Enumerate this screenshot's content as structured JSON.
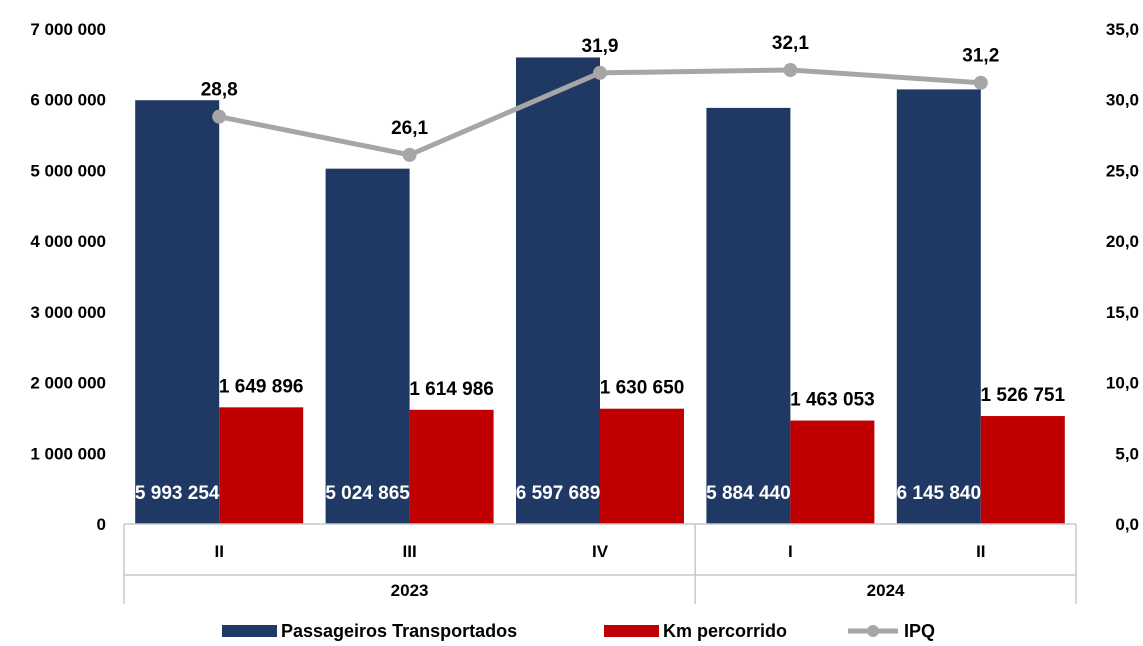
{
  "chart_data": {
    "type": "bar",
    "title": "",
    "groups": [
      {
        "label": "2023",
        "categories": [
          "II",
          "III",
          "IV"
        ]
      },
      {
        "label": "2024",
        "categories": [
          "I",
          "II"
        ]
      }
    ],
    "categories": [
      "II",
      "III",
      "IV",
      "I",
      "II"
    ],
    "series": [
      {
        "name": "Passageiros Transportados",
        "kind": "bar",
        "axis": "left",
        "color": "#1F3864",
        "values": [
          5993254,
          5024865,
          6597689,
          5884440,
          6145840
        ],
        "labels": [
          "5 993 254",
          "5 024 865",
          "6 597 689",
          "5 884 440",
          "6 145 840"
        ]
      },
      {
        "name": "Km percorrido",
        "kind": "bar",
        "axis": "left",
        "color": "#C00000",
        "values": [
          1649896,
          1614986,
          1630650,
          1463053,
          1526751
        ],
        "labels": [
          "1 649 896",
          "1 614 986",
          "1 630 650",
          "1 463 053",
          "1 526 751"
        ]
      },
      {
        "name": "IPQ",
        "kind": "line",
        "axis": "right",
        "color": "#A6A6A6",
        "values": [
          28.8,
          26.1,
          31.9,
          32.1,
          31.2
        ],
        "labels": [
          "28,8",
          "26,1",
          "31,9",
          "32,1",
          "31,2"
        ]
      }
    ],
    "y_left": {
      "min": 0,
      "max": 7000000,
      "ticks": [
        "0",
        "1 000 000",
        "2 000 000",
        "3 000 000",
        "4 000 000",
        "5 000 000",
        "6 000 000",
        "7 000 000"
      ]
    },
    "y_right": {
      "min": 0,
      "max": 35,
      "ticks": [
        "0,0",
        "5,0",
        "10,0",
        "15,0",
        "20,0",
        "25,0",
        "30,0",
        "35,0"
      ]
    },
    "grid": false,
    "legend_position": "bottom"
  }
}
